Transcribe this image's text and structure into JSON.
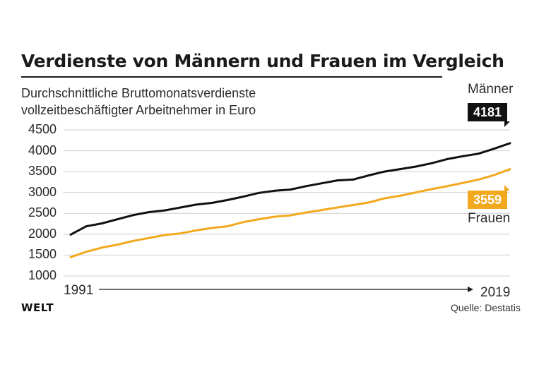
{
  "title": "Verdienste von Männern und Frauen im Vergleich",
  "subtitle_lines": [
    "Durchschnittliche Bruttomonatsverdienste",
    "vollzeitbeschäftigter Arbeitnehmer in Euro"
  ],
  "logo": "WELT",
  "source": "Quelle: Destatis",
  "colors": {
    "men": "#111111",
    "women": "#f2a91e",
    "grid": "#cfcfcf"
  },
  "chart_data": {
    "type": "line",
    "title": "Verdienste von Männern und Frauen im Vergleich",
    "subtitle": "Durchschnittliche Bruttomonatsverdienste vollzeitbeschäftigter Arbeitnehmer in Euro",
    "xlabel": "",
    "ylabel": "",
    "x": [
      1991,
      1992,
      1993,
      1994,
      1995,
      1996,
      1997,
      1998,
      1999,
      2000,
      2001,
      2002,
      2003,
      2004,
      2005,
      2006,
      2007,
      2008,
      2009,
      2010,
      2011,
      2012,
      2013,
      2014,
      2015,
      2016,
      2017,
      2018,
      2019
    ],
    "x_labels": {
      "start": "1991",
      "end": "2019"
    },
    "ylim": [
      1000,
      4500
    ],
    "yticks": [
      1000,
      1500,
      2000,
      2500,
      3000,
      3500,
      4000,
      4500
    ],
    "grid": true,
    "series": [
      {
        "name": "Männer",
        "color": "#111111",
        "end_label": "4181",
        "values": [
          1990,
          2190,
          2260,
          2360,
          2460,
          2530,
          2570,
          2640,
          2710,
          2750,
          2820,
          2900,
          2990,
          3040,
          3070,
          3150,
          3220,
          3290,
          3310,
          3410,
          3500,
          3560,
          3620,
          3700,
          3800,
          3870,
          3930,
          4050,
          4181
        ]
      },
      {
        "name": "Frauen",
        "color": "#f2a91e",
        "end_label": "3559",
        "values": [
          1450,
          1580,
          1680,
          1750,
          1840,
          1910,
          1980,
          2020,
          2090,
          2150,
          2190,
          2290,
          2360,
          2420,
          2450,
          2520,
          2580,
          2640,
          2700,
          2760,
          2860,
          2920,
          3000,
          3080,
          3150,
          3230,
          3310,
          3420,
          3559
        ]
      }
    ]
  }
}
